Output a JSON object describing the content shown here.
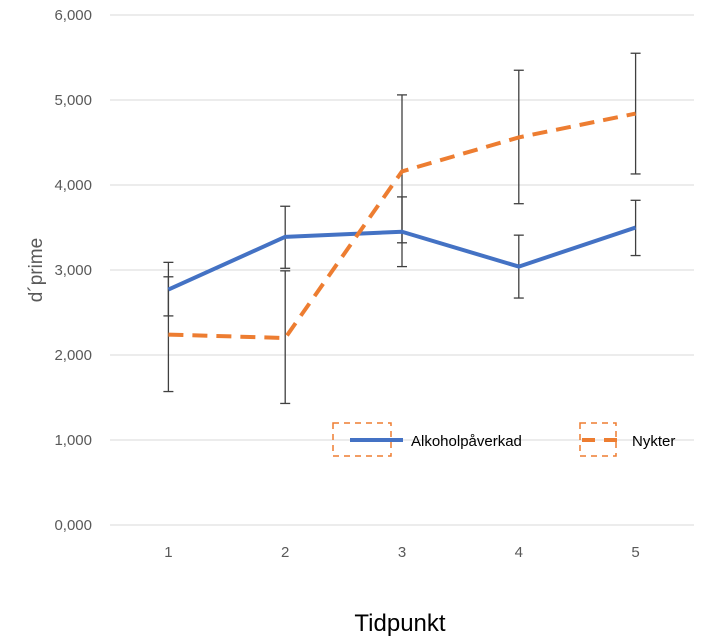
{
  "chart_data": {
    "type": "line",
    "xlabel": "Tidpunkt",
    "ylabel": "d´prime",
    "categories": [
      "1",
      "2",
      "3",
      "4",
      "5"
    ],
    "ylim": [
      0,
      6
    ],
    "yticks": [
      "0,000",
      "1,000",
      "2,000",
      "3,000",
      "4,000",
      "5,000",
      "6,000"
    ],
    "grid": true,
    "legend_position": "lower-right",
    "series": [
      {
        "name": "Alkoholpåverkad",
        "color": "#4472C4",
        "style": "solid",
        "values": [
          2.77,
          3.39,
          3.45,
          3.04,
          3.5
        ],
        "error_low": [
          2.46,
          3.02,
          3.04,
          2.67,
          3.17
        ],
        "error_high": [
          3.09,
          3.75,
          3.86,
          3.41,
          3.82
        ]
      },
      {
        "name": "Nykter",
        "color": "#ED7D31",
        "style": "dashed",
        "values": [
          2.24,
          2.2,
          4.16,
          4.56,
          4.84
        ],
        "error_low": [
          1.57,
          1.43,
          3.32,
          3.78,
          4.13
        ],
        "error_high": [
          2.92,
          2.99,
          5.06,
          5.35,
          5.55
        ]
      }
    ]
  }
}
